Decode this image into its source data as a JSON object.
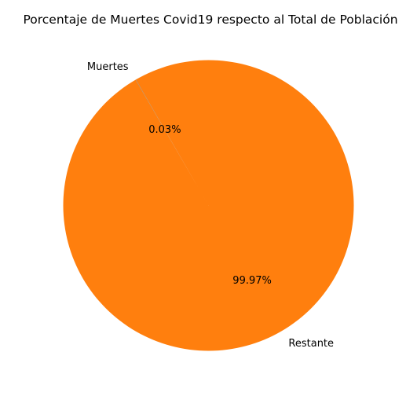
{
  "chart_data": {
    "type": "pie",
    "title": "Porcentaje de Muertes Covid19 respecto al Total de Población",
    "slices": [
      {
        "label": "Muertes",
        "value": 0.03,
        "pct_label": "0.03%",
        "color": "#1f77b4"
      },
      {
        "label": "Restante",
        "value": 99.97,
        "pct_label": "99.97%",
        "color": "#ff7f0e"
      }
    ],
    "start_angle_deg": 120,
    "counterclockwise": true
  }
}
